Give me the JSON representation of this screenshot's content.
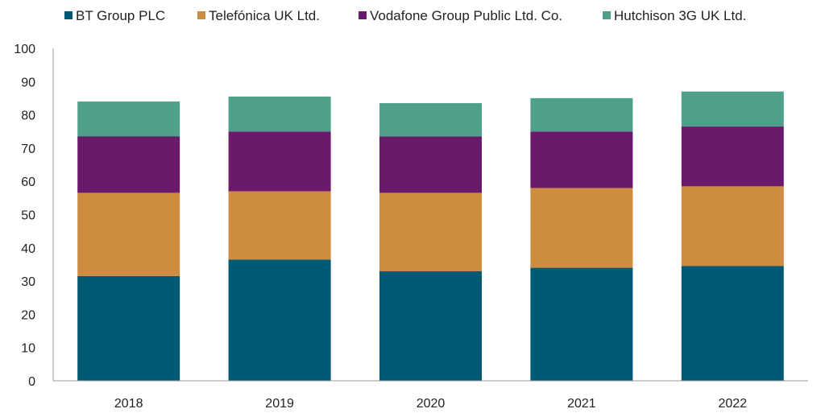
{
  "chart_data": {
    "type": "bar",
    "stacked": true,
    "categories": [
      "2018",
      "2019",
      "2020",
      "2021",
      "2022"
    ],
    "series": [
      {
        "name": "BT Group PLC",
        "color": "#005a73",
        "values": [
          31.5,
          36.5,
          33,
          34,
          34.5
        ]
      },
      {
        "name": "Telefónica UK Ltd.",
        "color": "#cd8c40",
        "values": [
          25,
          20.5,
          23.5,
          24,
          24
        ]
      },
      {
        "name": "Vodafone Group Public Ltd. Co.",
        "color": "#6a1a6a",
        "values": [
          17,
          18,
          17,
          17,
          18
        ]
      },
      {
        "name": "Hutchison 3G UK Ltd.",
        "color": "#4fa08a",
        "values": [
          10.5,
          10.5,
          10,
          10,
          10.5
        ]
      }
    ],
    "ylim": [
      0,
      100
    ],
    "yticks": [
      "0",
      "10",
      "20",
      "30",
      "40",
      "50",
      "60",
      "70",
      "80",
      "90",
      "100"
    ],
    "grid": false,
    "legend_position": "top"
  }
}
